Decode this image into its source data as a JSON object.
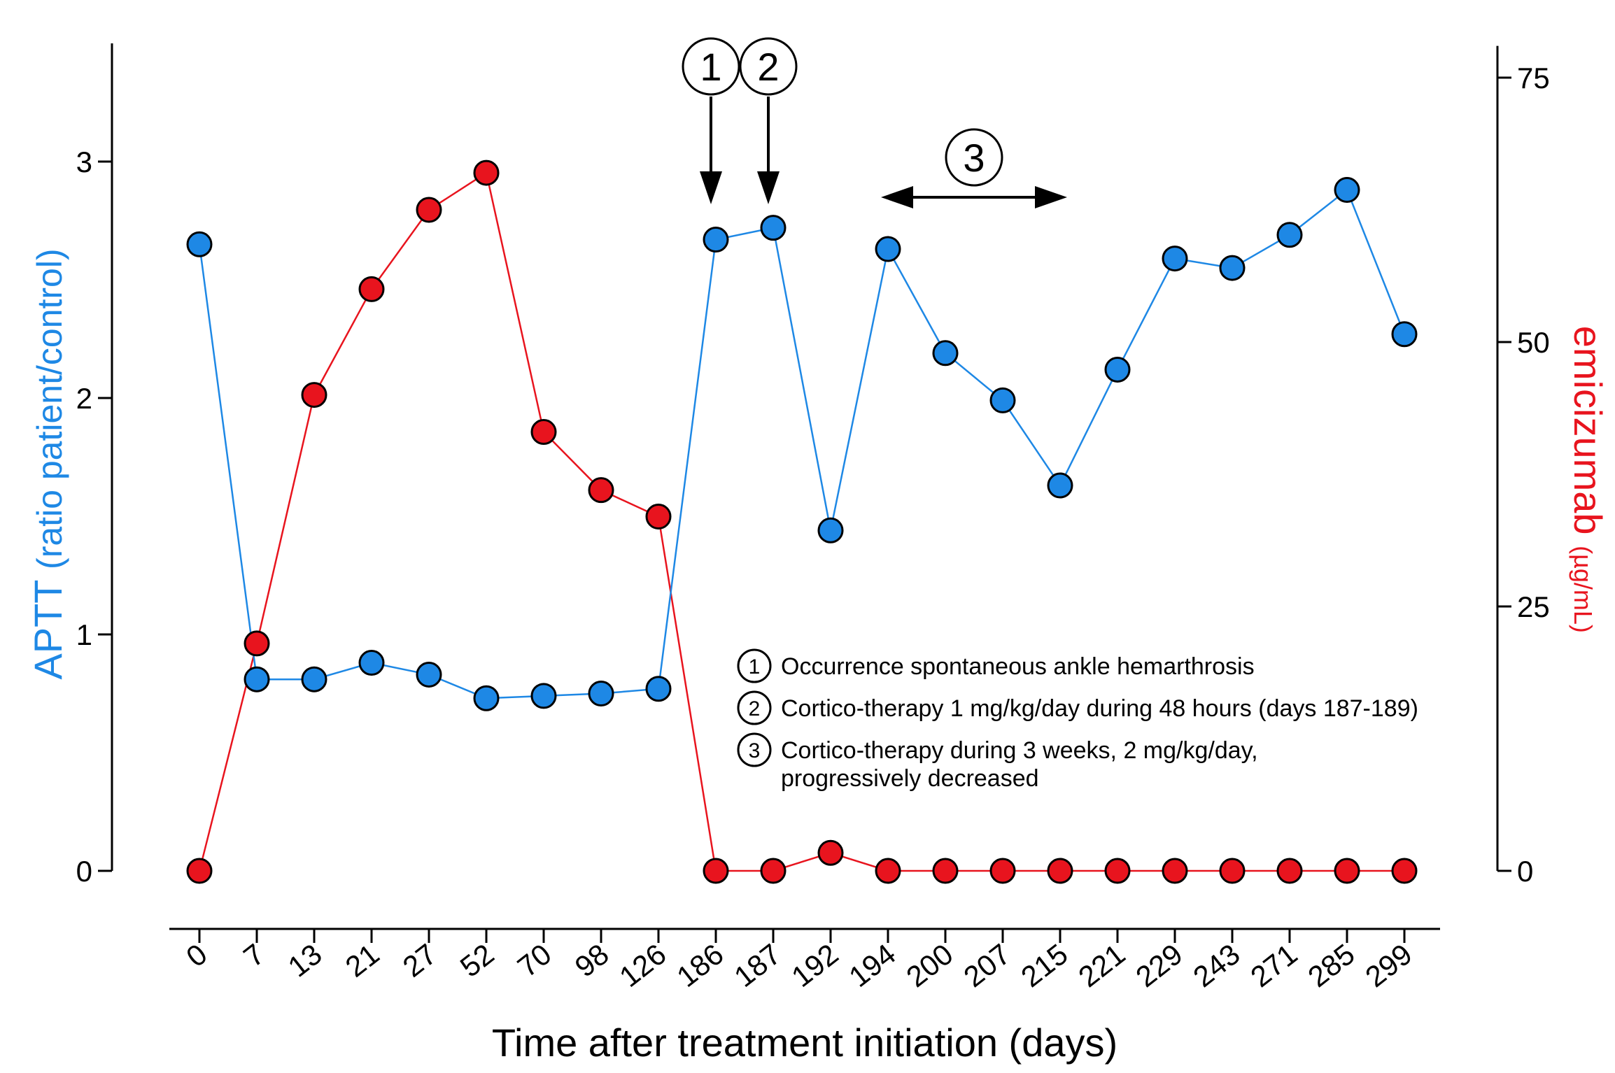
{
  "chart_data": {
    "type": "line",
    "title": "",
    "xlabel": "Time after treatment initiation (days)",
    "ylabel_left": {
      "main": "APTT",
      "sub": "(ratio patient/control)"
    },
    "ylabel_right": {
      "main": "emicizumab",
      "sub": "(µg/mL)"
    },
    "categories": [
      "0",
      "7",
      "13",
      "21",
      "27",
      "52",
      "70",
      "98",
      "126",
      "186",
      "187",
      "192",
      "194",
      "200",
      "207",
      "215",
      "221",
      "229",
      "243",
      "271",
      "285",
      "299"
    ],
    "y_left": {
      "lim": [
        0,
        3.5
      ],
      "ticks": [
        0,
        1,
        2,
        3
      ]
    },
    "y_right": {
      "lim": [
        0,
        78
      ],
      "ticks": [
        0,
        25,
        50,
        75
      ]
    },
    "series": [
      {
        "name": "APTT",
        "axis": "left",
        "color": "#1e88e5",
        "values": [
          2.65,
          0.81,
          0.81,
          0.88,
          0.83,
          0.73,
          0.74,
          0.75,
          0.77,
          2.67,
          2.72,
          1.44,
          2.63,
          2.19,
          1.99,
          1.63,
          2.12,
          2.59,
          2.55,
          2.69,
          2.88,
          2.27
        ]
      },
      {
        "name": "emicizumab",
        "axis": "right",
        "color": "#e8141e",
        "values": [
          0,
          21.5,
          45,
          55,
          62.5,
          66,
          41.5,
          36,
          33.5,
          0,
          0,
          1.7,
          0,
          0,
          0,
          0,
          0,
          0,
          0,
          0,
          0,
          0
        ]
      }
    ],
    "annotations": [
      {
        "id": "1",
        "label": "1",
        "type": "down-arrow",
        "category": "186"
      },
      {
        "id": "2",
        "label": "2",
        "type": "down-arrow",
        "category": "187"
      },
      {
        "id": "3",
        "label": "3",
        "type": "double-arrow",
        "from_category": "194",
        "to_category": "215"
      }
    ],
    "legend": {
      "placement": "lower-right",
      "items": [
        {
          "num": "1",
          "lines": [
            "Occurrence spontaneous ankle hemarthrosis"
          ]
        },
        {
          "num": "2",
          "lines": [
            "Cortico-therapy 1 mg/kg/day during 48 hours (days 187-189)"
          ]
        },
        {
          "num": "3",
          "lines": [
            "Cortico-therapy during 3 weeks, 2 mg/kg/day,",
            "progressively decreased"
          ]
        }
      ]
    }
  }
}
